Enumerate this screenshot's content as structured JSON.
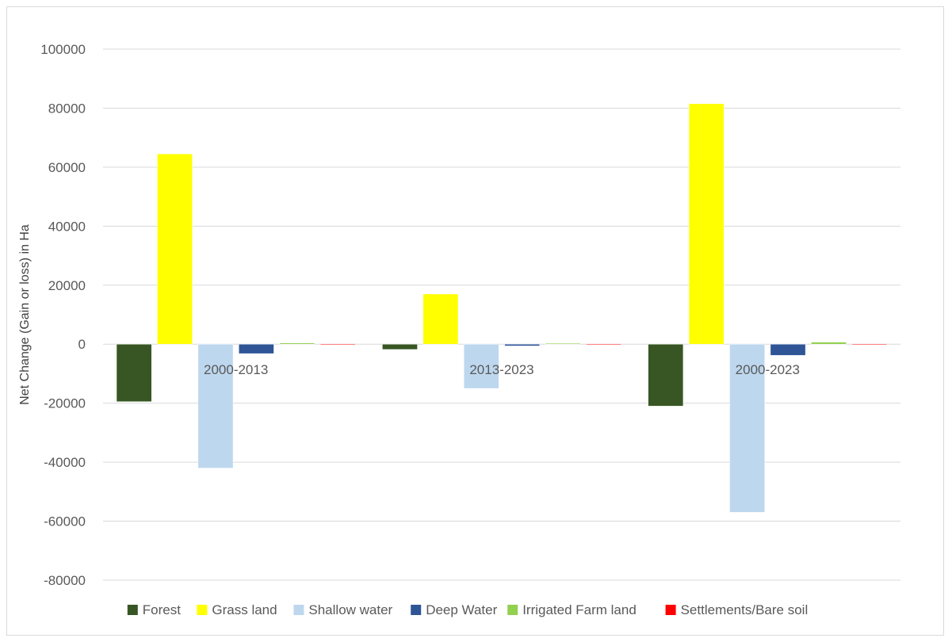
{
  "chart_data": {
    "type": "bar",
    "title": "",
    "xlabel": "",
    "ylabel": "Net Change (Gain or loss) in Ha",
    "ylim": [
      -80000,
      100000
    ],
    "yticks": [
      100000,
      80000,
      60000,
      40000,
      20000,
      0,
      -20000,
      -40000,
      -60000,
      -80000
    ],
    "grid": true,
    "legend_position": "bottom",
    "categories": [
      "2000-2013",
      "2013-2023",
      "2000-2023"
    ],
    "series": [
      {
        "name": "Forest",
        "color": "#375623",
        "values": [
          -19500,
          -1800,
          -21000
        ]
      },
      {
        "name": "Grass land",
        "color": "#ffff00",
        "values": [
          64500,
          17000,
          81500
        ]
      },
      {
        "name": "Shallow water",
        "color": "#bdd7ee",
        "values": [
          -42000,
          -15000,
          -57000
        ]
      },
      {
        "name": "Deep Water",
        "color": "#2f5597",
        "values": [
          -3200,
          -600,
          -3800
        ]
      },
      {
        "name": "Irrigated Farm land",
        "color": "#92d050",
        "values": [
          400,
          300,
          700
        ]
      },
      {
        "name": "Settlements/Bare soil",
        "color": "#ff0000",
        "values": [
          0,
          0,
          0
        ]
      }
    ]
  }
}
